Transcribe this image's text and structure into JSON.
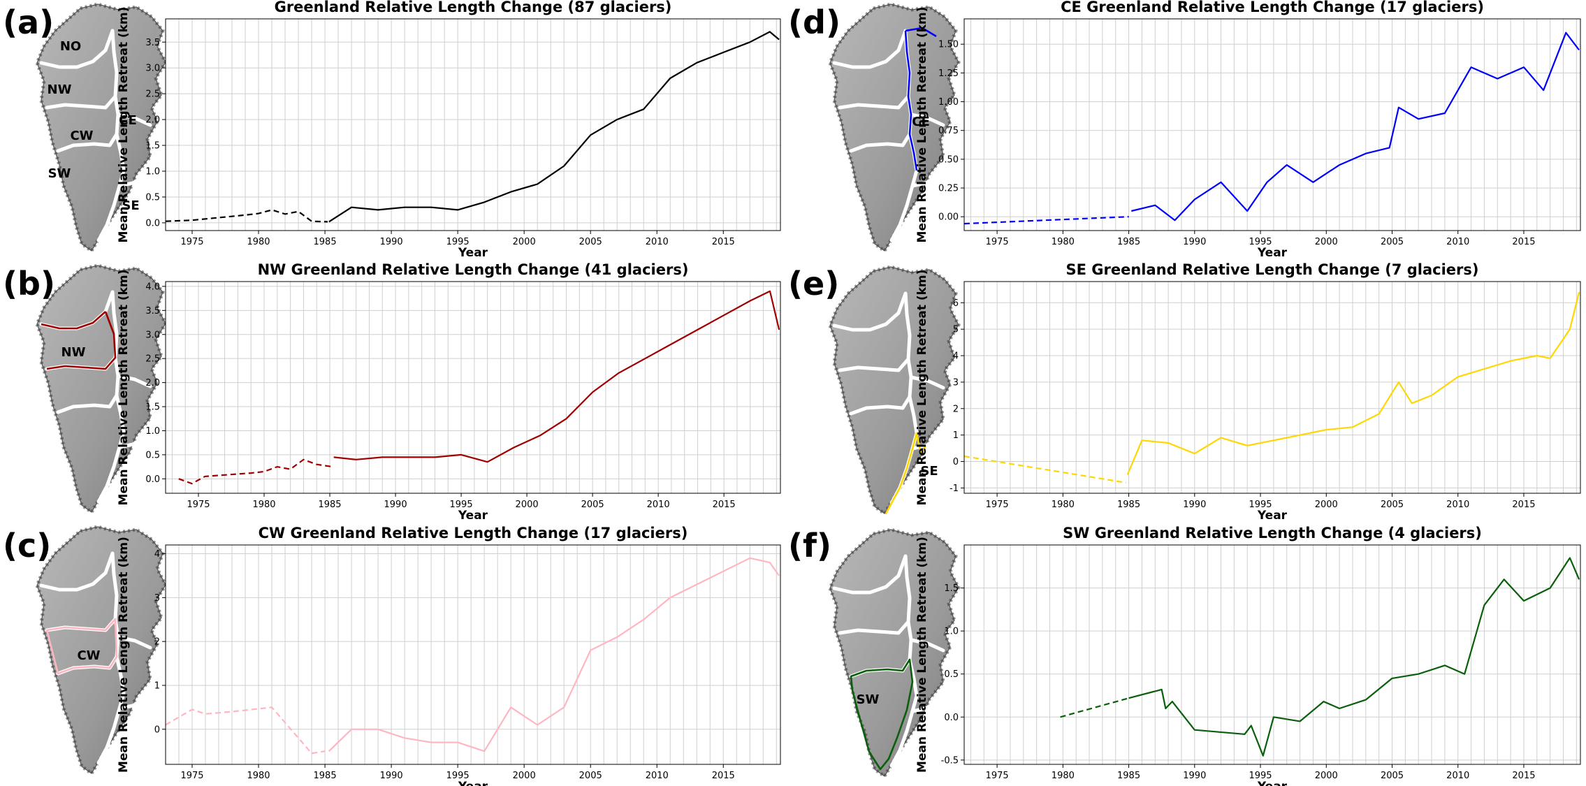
{
  "figure": {
    "panels": [
      "(a)",
      "(b)",
      "(c)",
      "(d)",
      "(e)",
      "(f)"
    ],
    "map_labels": {
      "a": [
        "NO",
        "NW",
        "CW",
        "CE",
        "SW",
        "SE"
      ],
      "b": [
        "NW"
      ],
      "c": [
        "CW"
      ],
      "d": [
        "CE"
      ],
      "e": [
        "SE"
      ],
      "f": [
        "SW"
      ]
    }
  },
  "chart_data": [
    {
      "type": "line",
      "panel": "(a)",
      "title": "Greenland Relative Length Change (87 glaciers)",
      "xlabel": "Year",
      "ylabel": "Mean Relative Length Retreat (km)",
      "xlim": [
        1973,
        2019.3
      ],
      "ylim": [
        -0.15,
        3.95
      ],
      "grid": true,
      "color": "#000000",
      "xticks": [
        1975,
        1980,
        1985,
        1990,
        1995,
        2000,
        2005,
        2010,
        2015
      ],
      "yticks": [
        0.0,
        0.5,
        1.0,
        1.5,
        2.0,
        2.5,
        3.0,
        3.5
      ],
      "dashed_segment": {
        "x": [
          1973,
          1975,
          1977,
          1979,
          1980,
          1981,
          1982,
          1983,
          1984,
          1985.2
        ],
        "y": [
          0.03,
          0.05,
          0.1,
          0.15,
          0.18,
          0.25,
          0.17,
          0.22,
          0.03,
          0.02
        ]
      },
      "solid_segment": {
        "x": [
          1985.3,
          1987,
          1989,
          1991,
          1993,
          1995,
          1997,
          1999,
          2001,
          2003,
          2005,
          2007,
          2009,
          2011,
          2013,
          2015,
          2017,
          2018.5,
          2019.2
        ],
        "y": [
          0.02,
          0.3,
          0.25,
          0.3,
          0.3,
          0.25,
          0.4,
          0.6,
          0.75,
          1.1,
          1.7,
          2.0,
          2.2,
          2.8,
          3.1,
          3.3,
          3.5,
          3.7,
          3.55
        ]
      }
    },
    {
      "type": "line",
      "panel": "(b)",
      "title": "NW Greenland Relative Length Change (41 glaciers)",
      "xlabel": "Year",
      "ylabel": "Mean Relative Length Retreat (km)",
      "xlim": [
        1972.5,
        2019.3
      ],
      "ylim": [
        -0.3,
        4.1
      ],
      "grid": true,
      "color": "#a00000",
      "xticks": [
        1975,
        1980,
        1985,
        1990,
        1995,
        2000,
        2005,
        2010,
        2015
      ],
      "yticks": [
        0.0,
        0.5,
        1.0,
        1.5,
        2.0,
        2.5,
        3.0,
        3.5,
        4.0
      ],
      "dashed_segment": {
        "x": [
          1973.5,
          1974.5,
          1975.5,
          1977,
          1979,
          1980,
          1981,
          1982,
          1983,
          1984,
          1985.2
        ],
        "y": [
          0.0,
          -0.1,
          0.05,
          0.08,
          0.12,
          0.15,
          0.25,
          0.2,
          0.4,
          0.3,
          0.25
        ]
      },
      "solid_segment": {
        "x": [
          1985.3,
          1987,
          1989,
          1991,
          1993,
          1995,
          1997,
          1999,
          2001,
          2003,
          2005,
          2007,
          2009,
          2011,
          2013,
          2015,
          2017,
          2018.5,
          2019.2
        ],
        "y": [
          0.45,
          0.4,
          0.45,
          0.45,
          0.45,
          0.5,
          0.35,
          0.65,
          0.9,
          1.25,
          1.8,
          2.2,
          2.5,
          2.8,
          3.1,
          3.4,
          3.7,
          3.9,
          3.1
        ]
      }
    },
    {
      "type": "line",
      "panel": "(c)",
      "title": "CW Greenland Relative Length Change (17 glaciers)",
      "xlabel": "Year",
      "ylabel": "Mean Relative Length Retreat (km)",
      "xlim": [
        1973,
        2019.3
      ],
      "ylim": [
        -0.8,
        4.2
      ],
      "grid": true,
      "color": "#ffb6c1",
      "xticks": [
        1975,
        1980,
        1985,
        1990,
        1995,
        2000,
        2005,
        2010,
        2015
      ],
      "yticks": [
        0,
        1,
        2,
        3,
        4
      ],
      "dashed_segment": {
        "x": [
          1973,
          1975,
          1976,
          1978,
          1981,
          1983,
          1984,
          1985
        ],
        "y": [
          0.1,
          0.45,
          0.35,
          0.4,
          0.5,
          -0.2,
          -0.55,
          -0.5
        ]
      },
      "solid_segment": {
        "x": [
          1985.3,
          1987,
          1989,
          1991,
          1993,
          1995,
          1997,
          1999,
          2001,
          2003,
          2005,
          2007,
          2009,
          2011,
          2013,
          2015,
          2017,
          2018.5,
          2019.2
        ],
        "y": [
          -0.5,
          0.0,
          0.0,
          -0.2,
          -0.3,
          -0.3,
          -0.5,
          0.5,
          0.1,
          0.5,
          1.8,
          2.1,
          2.5,
          3.0,
          3.3,
          3.6,
          3.9,
          3.8,
          3.5
        ]
      }
    },
    {
      "type": "line",
      "panel": "(d)",
      "title": "CE Greenland Relative Length Change (17 glaciers)",
      "xlabel": "Year",
      "ylabel": "Mean Relative Length Retreat (km)",
      "xlim": [
        1972.5,
        2019.3
      ],
      "ylim": [
        -0.12,
        1.72
      ],
      "grid": true,
      "color": "#0000ff",
      "xticks": [
        1975,
        1980,
        1985,
        1990,
        1995,
        2000,
        2005,
        2010,
        2015
      ],
      "yticks": [
        0.0,
        0.25,
        0.5,
        0.75,
        1.0,
        1.25,
        1.5
      ],
      "dashed_segment": {
        "x": [
          1972.5,
          1985
        ],
        "y": [
          -0.06,
          0.0
        ]
      },
      "solid_segment": {
        "x": [
          1985.2,
          1987,
          1988.5,
          1990,
          1992,
          1994,
          1995.5,
          1997,
          1999,
          2001,
          2003,
          2004.8,
          2005.5,
          2007,
          2009,
          2011,
          2013,
          2015,
          2016.5,
          2018.2,
          2019.2
        ],
        "y": [
          0.05,
          0.1,
          -0.03,
          0.15,
          0.3,
          0.05,
          0.3,
          0.45,
          0.3,
          0.45,
          0.55,
          0.6,
          0.95,
          0.85,
          0.9,
          1.3,
          1.2,
          1.3,
          1.1,
          1.6,
          1.45
        ]
      }
    },
    {
      "type": "line",
      "panel": "(e)",
      "title": "SE Greenland Relative Length Change (7 glaciers)",
      "xlabel": "Year",
      "ylabel": "Mean Relative Length Retreat (km)",
      "xlim": [
        1972.5,
        2019.3
      ],
      "ylim": [
        -1.2,
        6.8
      ],
      "grid": true,
      "color": "#ffd700",
      "xticks": [
        1975,
        1980,
        1985,
        1990,
        1995,
        2000,
        2005,
        2010,
        2015
      ],
      "yticks": [
        -1,
        0,
        1,
        2,
        3,
        4,
        5,
        6
      ],
      "dashed_segment": {
        "x": [
          1972.5,
          1984.8
        ],
        "y": [
          0.2,
          -0.8
        ]
      },
      "solid_segment": {
        "x": [
          1984.9,
          1986,
          1988,
          1990,
          1992,
          1994,
          1996,
          1998,
          2000,
          2002,
          2004,
          2005.5,
          2006.5,
          2008,
          2010,
          2012,
          2014,
          2016,
          2017,
          2018.5,
          2019.2
        ],
        "y": [
          -0.5,
          0.8,
          0.7,
          0.3,
          0.9,
          0.6,
          0.8,
          1.0,
          1.2,
          1.3,
          1.8,
          3.0,
          2.2,
          2.5,
          3.2,
          3.5,
          3.8,
          4.0,
          3.9,
          5.0,
          6.4
        ]
      }
    },
    {
      "type": "line",
      "panel": "(f)",
      "title": "SW Greenland Relative Length Change (4 glaciers)",
      "xlabel": "Year",
      "ylabel": "Mean Relative Length Retreat (km)",
      "xlim": [
        1972.5,
        2019.3
      ],
      "ylim": [
        -0.55,
        2.0
      ],
      "grid": true,
      "color": "#0a5f0a",
      "xticks": [
        1975,
        1980,
        1985,
        1990,
        1995,
        2000,
        2005,
        2010,
        2015
      ],
      "yticks": [
        -0.5,
        0.0,
        0.5,
        1.0,
        1.5
      ],
      "dashed_segment": {
        "x": [
          1979.8,
          1985
        ],
        "y": [
          0.0,
          0.22
        ]
      },
      "solid_segment": {
        "x": [
          1985,
          1987.5,
          1987.8,
          1988.3,
          1990,
          1993.8,
          1994.3,
          1995.2,
          1996,
          1998,
          1999.8,
          2001,
          2003,
          2005,
          2007,
          2009,
          2010.5,
          2012,
          2013.5,
          2015,
          2017,
          2018.5,
          2019.2
        ],
        "y": [
          0.22,
          0.32,
          0.1,
          0.18,
          -0.15,
          -0.2,
          -0.1,
          -0.45,
          0.0,
          -0.05,
          0.18,
          0.1,
          0.2,
          0.45,
          0.5,
          0.6,
          0.5,
          1.3,
          1.6,
          1.35,
          1.5,
          1.85,
          1.6
        ]
      }
    }
  ]
}
